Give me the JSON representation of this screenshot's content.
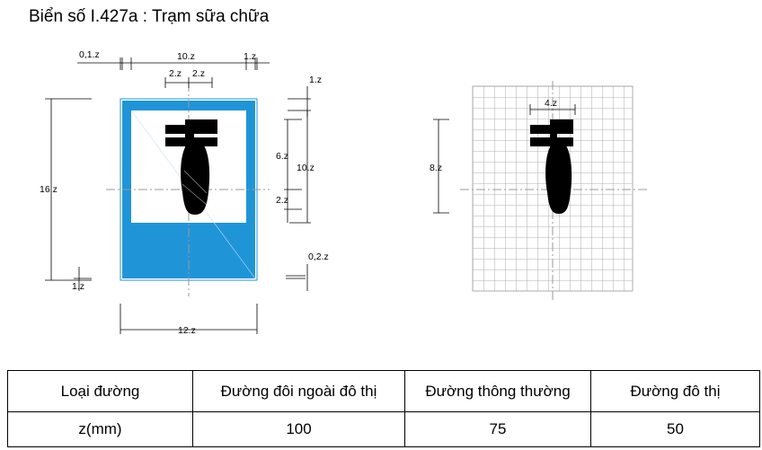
{
  "title": "Biển số I.427a : Trạm sữa chữa",
  "sign_colors": {
    "background": "#1f95d8",
    "panel": "#ffffff",
    "symbol": "#000000"
  },
  "symbol_icon": "wrench-icon",
  "left_dims": {
    "d01": "0,1.z",
    "d10top": "10.z",
    "d1top": "1.z",
    "d2a": "2.z",
    "d2b": "2.z",
    "d1right": "1.z",
    "d6": "6.z",
    "d10right": "10.z",
    "d2small": "2.z",
    "d16": "16.z",
    "d02": "0,2.z",
    "d1bottom": "1.z",
    "d12": "12.z"
  },
  "right_dims": {
    "d4": "4.z",
    "d8": "8.z"
  },
  "table": {
    "header": [
      "Loại đường",
      "Đường đôi ngoài đô thị",
      "Đường thông thường",
      "Đường đô thị"
    ],
    "row": [
      "z(mm)",
      "100",
      "75",
      "50"
    ]
  }
}
